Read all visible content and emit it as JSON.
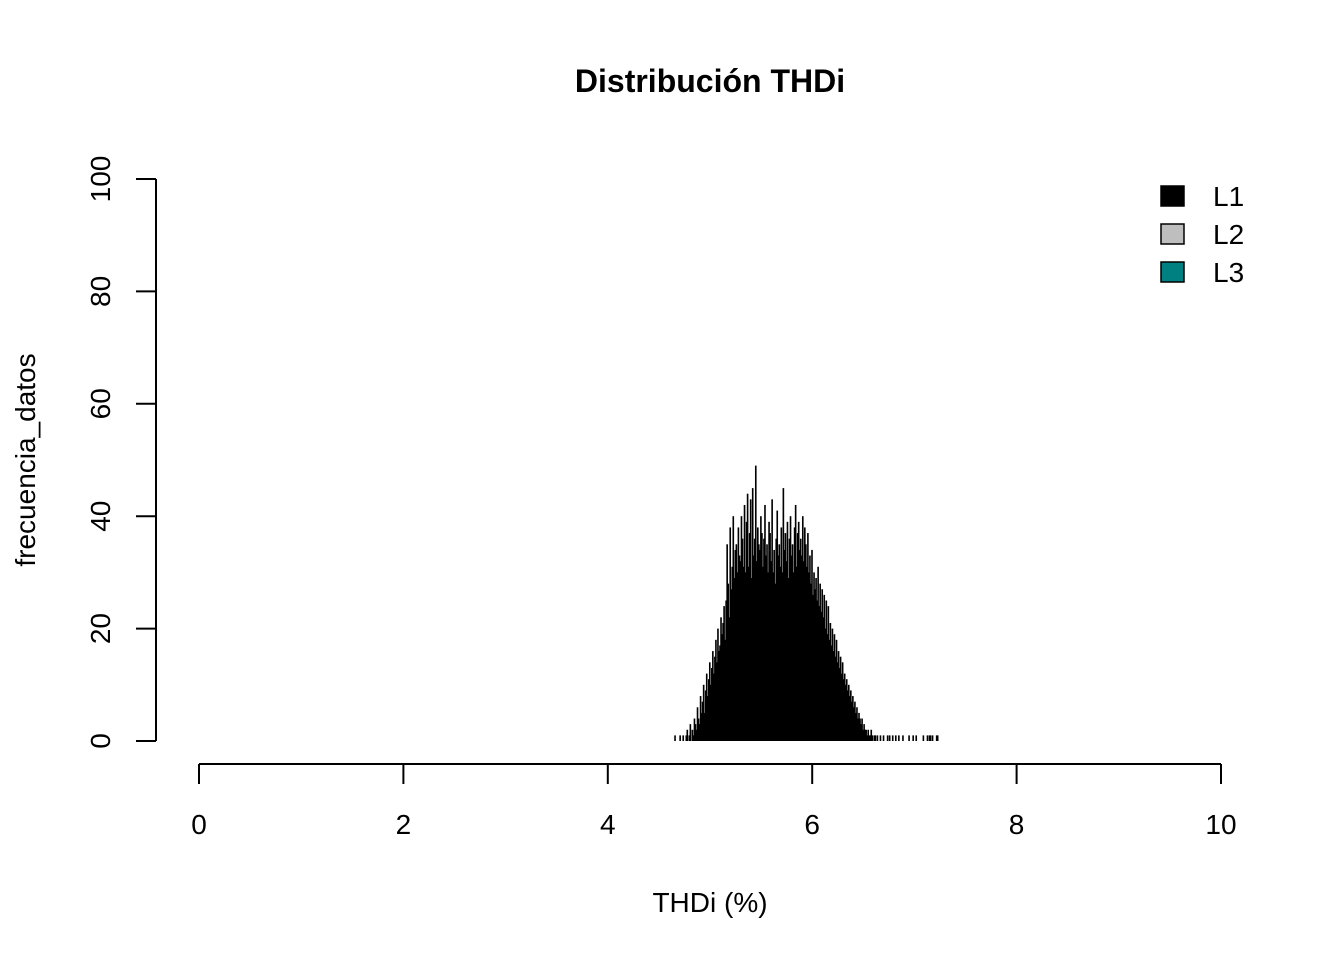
{
  "chart_data": {
    "type": "bar",
    "title": "Distribución THDi",
    "xlabel": "THDi (%)",
    "ylabel": "frecuencia_datos",
    "xlim": [
      0,
      10
    ],
    "ylim": [
      0,
      100
    ],
    "x_ticks": [
      "0",
      "2",
      "4",
      "6",
      "8",
      "10"
    ],
    "y_ticks": [
      "0",
      "20",
      "40",
      "60",
      "80",
      "100"
    ],
    "legend": {
      "position": "top-right",
      "items": [
        {
          "label": "L1",
          "color": "#000000"
        },
        {
          "label": "L2",
          "color": "#bebebe"
        },
        {
          "label": "L3",
          "color": "#008080"
        }
      ]
    },
    "bin_width": 0.01,
    "bin_start": 4.65,
    "series": [
      {
        "name": "L1",
        "color": "#000000",
        "values": [
          1,
          0,
          0,
          0,
          0,
          1,
          0,
          0,
          1,
          0,
          0,
          1,
          2,
          0,
          1,
          3,
          0,
          2,
          1,
          4,
          3,
          2,
          6,
          4,
          3,
          8,
          5,
          7,
          10,
          5,
          9,
          12,
          8,
          11,
          14,
          10,
          13,
          16,
          12,
          15,
          18,
          14,
          20,
          16,
          17,
          22,
          19,
          21,
          24,
          18,
          25,
          35,
          28,
          22,
          38,
          27,
          31,
          40,
          29,
          34,
          35,
          30,
          38,
          33,
          32,
          40,
          36,
          31,
          42,
          30,
          39,
          44,
          31,
          37,
          43,
          29,
          45,
          33,
          36,
          49,
          32,
          38,
          35,
          34,
          40,
          37,
          31,
          36,
          42,
          33,
          35,
          30,
          39,
          37,
          32,
          43,
          30,
          34,
          28,
          36,
          41,
          33,
          35,
          31,
          38,
          30,
          45,
          34,
          37,
          32,
          39,
          29,
          36,
          40,
          33,
          35,
          30,
          38,
          42,
          31,
          37,
          39,
          34,
          36,
          33,
          40,
          32,
          38,
          35,
          31,
          37,
          30,
          33,
          28,
          34,
          26,
          30,
          27,
          29,
          25,
          31,
          24,
          28,
          23,
          27,
          22,
          26,
          20,
          25,
          19,
          24,
          18,
          21,
          17,
          20,
          16,
          19,
          15,
          18,
          14,
          16,
          13,
          15,
          12,
          14,
          11,
          12,
          10,
          11,
          9,
          10,
          8,
          9,
          7,
          8,
          6,
          7,
          5,
          6,
          4,
          5,
          4,
          3,
          4,
          2,
          3,
          2,
          2,
          1,
          2,
          1,
          1,
          2,
          1,
          0,
          1,
          1,
          0,
          1,
          0,
          0,
          1,
          0,
          0,
          1,
          0,
          0,
          0,
          1,
          0,
          1,
          0,
          0,
          1,
          0,
          0,
          1,
          0,
          0,
          1,
          0,
          0,
          0,
          1,
          0,
          0,
          0,
          0,
          0,
          1,
          0,
          0,
          0,
          1,
          0,
          0,
          1,
          0,
          0,
          0,
          0,
          0,
          0,
          1,
          0,
          0,
          0,
          1,
          0,
          1,
          1,
          0,
          1,
          0,
          0,
          0,
          1,
          1
        ]
      },
      {
        "name": "L2",
        "color": "#bebebe",
        "values": []
      },
      {
        "name": "L3",
        "color": "#008080",
        "values": []
      }
    ]
  }
}
